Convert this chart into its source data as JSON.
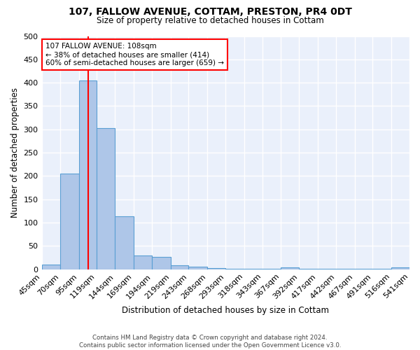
{
  "title_main": "107, FALLOW AVENUE, COTTAM, PRESTON, PR4 0DT",
  "title_sub": "Size of property relative to detached houses in Cottam",
  "xlabel": "Distribution of detached houses by size in Cottam",
  "ylabel": "Number of detached properties",
  "bin_edges": [
    45,
    70,
    95,
    119,
    144,
    169,
    194,
    219,
    243,
    268,
    293,
    318,
    343,
    367,
    392,
    417,
    442,
    467,
    491,
    516,
    541
  ],
  "bar_heights": [
    10,
    205,
    405,
    303,
    113,
    30,
    27,
    8,
    5,
    2,
    1,
    1,
    1,
    4,
    1,
    1,
    1,
    1,
    1,
    4
  ],
  "bar_color": "#aec6e8",
  "bar_edge_color": "#5a9fd4",
  "red_line_x": 108,
  "annotation_text": "107 FALLOW AVENUE: 108sqm\n← 38% of detached houses are smaller (414)\n60% of semi-detached houses are larger (659) →",
  "annotation_box_color": "white",
  "annotation_box_edge_color": "red",
  "red_line_color": "red",
  "ylim": [
    0,
    500
  ],
  "yticks": [
    0,
    50,
    100,
    150,
    200,
    250,
    300,
    350,
    400,
    450,
    500
  ],
  "background_color": "#eaf0fb",
  "grid_color": "white",
  "footnote": "Contains HM Land Registry data © Crown copyright and database right 2024.\nContains public sector information licensed under the Open Government Licence v3.0.",
  "tick_labels": [
    "45sqm",
    "70sqm",
    "95sqm",
    "119sqm",
    "144sqm",
    "169sqm",
    "194sqm",
    "219sqm",
    "243sqm",
    "268sqm",
    "293sqm",
    "318sqm",
    "343sqm",
    "367sqm",
    "392sqm",
    "417sqm",
    "442sqm",
    "467sqm",
    "491sqm",
    "516sqm",
    "541sqm"
  ]
}
